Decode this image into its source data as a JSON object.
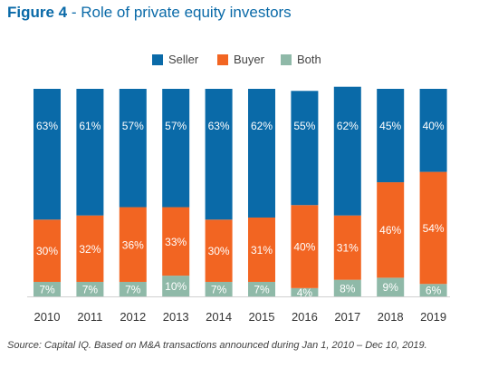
{
  "header": {
    "figure_label": "Figure 4",
    "title_rest": " - Role of private equity investors"
  },
  "chart_data": {
    "type": "bar",
    "stacked": true,
    "categories": [
      "2010",
      "2011",
      "2012",
      "2013",
      "2014",
      "2015",
      "2016",
      "2017",
      "2018",
      "2019"
    ],
    "series": [
      {
        "name": "Seller",
        "color": "#0a6aa8",
        "values": [
          63,
          61,
          57,
          57,
          63,
          62,
          55,
          62,
          45,
          40
        ],
        "labels": [
          "63%",
          "61%",
          "57%",
          "57%",
          "63%",
          "62%",
          "55%",
          "62%",
          "45%",
          "40%"
        ]
      },
      {
        "name": "Buyer",
        "color": "#f26522",
        "values": [
          30,
          32,
          36,
          33,
          30,
          31,
          40,
          31,
          46,
          54
        ],
        "labels": [
          "30%",
          "32%",
          "36%",
          "33%",
          "30%",
          "31%",
          "40%",
          "31%",
          "46%",
          "54%"
        ]
      },
      {
        "name": "Both",
        "color": "#8fb9a8",
        "values": [
          7,
          7,
          7,
          10,
          7,
          7,
          4,
          8,
          9,
          6
        ],
        "labels": [
          "7%",
          "7%",
          "7%",
          "10%",
          "7%",
          "7%",
          "4%",
          "8%",
          "9%",
          "6%"
        ]
      }
    ],
    "ylim": [
      0,
      100
    ],
    "legend_position": "top-center",
    "grid": false
  },
  "footer": {
    "source": "Source: Capital IQ. Based on M&A transactions announced during Jan 1, 2010 – Dec 10, 2019."
  }
}
